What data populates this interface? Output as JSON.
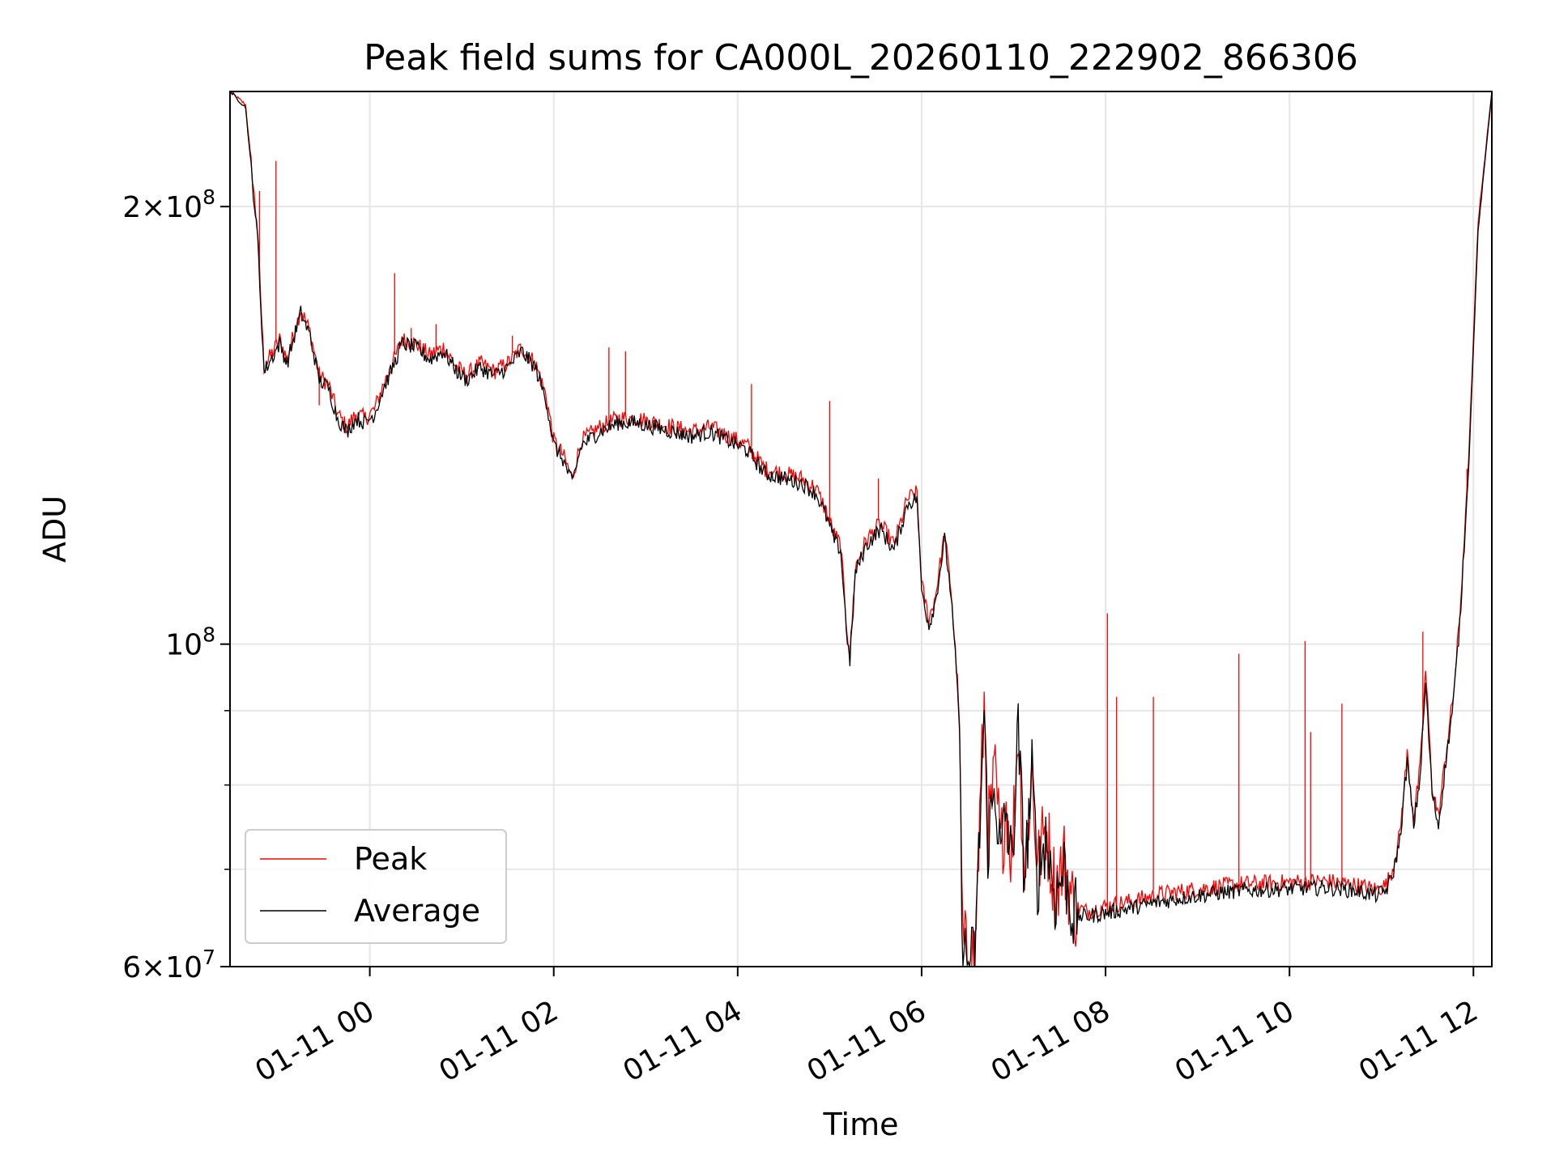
{
  "chart_data": {
    "type": "line",
    "title": "Peak field sums for CA000L_20260110_222902_866306",
    "xlabel": "Time",
    "ylabel": "ADU",
    "yscale": "log",
    "ylim": [
      60000000,
      240000000
    ],
    "xlim_hours": [
      -1.52,
      12.2
    ],
    "grid": true,
    "legend_position": "lower-left",
    "x_ticks": [
      {
        "hour": 0,
        "label": "01-11 00"
      },
      {
        "hour": 2,
        "label": "01-11 02"
      },
      {
        "hour": 4,
        "label": "01-11 04"
      },
      {
        "hour": 6,
        "label": "01-11 06"
      },
      {
        "hour": 8,
        "label": "01-11 08"
      },
      {
        "hour": 10,
        "label": "01-11 10"
      },
      {
        "hour": 12,
        "label": "01-11 12"
      }
    ],
    "y_major_ticks": [
      {
        "value": 60000000,
        "mantissa": "6",
        "exponent": "7"
      },
      {
        "value": 100000000,
        "mantissa": "",
        "exponent": "8"
      },
      {
        "value": 200000000,
        "mantissa": "2",
        "exponent": "8"
      }
    ],
    "y_minor_gridlines": [
      70000000,
      80000000,
      90000000
    ],
    "series": [
      {
        "name": "Peak",
        "color": "#ff0000",
        "spikes": [
          [
            -1.2,
            205000000
          ],
          [
            -1.02,
            215000000
          ],
          [
            -0.55,
            146000000
          ],
          [
            -0.38,
            146000000
          ],
          [
            0.27,
            180000000
          ],
          [
            0.45,
            165000000
          ],
          [
            0.72,
            166000000
          ],
          [
            1.55,
            163000000
          ],
          [
            1.85,
            154000000
          ],
          [
            2.6,
            160000000
          ],
          [
            2.78,
            159000000
          ],
          [
            4.15,
            151000000
          ],
          [
            5.0,
            147000000
          ],
          [
            5.53,
            130000000
          ],
          [
            8.02,
            105000000
          ],
          [
            8.12,
            92000000
          ],
          [
            8.52,
            92000000
          ],
          [
            9.45,
            98500000
          ],
          [
            10.17,
            100500000
          ],
          [
            10.23,
            87000000
          ],
          [
            10.57,
            91000000
          ],
          [
            11.45,
            102000000
          ],
          [
            11.93,
            132000000
          ]
        ],
        "points": [
          [
            -1.52,
            240000000
          ],
          [
            -1.35,
            235000000
          ],
          [
            -1.22,
            192000000
          ],
          [
            -1.15,
            155000000
          ],
          [
            -0.98,
            162000000
          ],
          [
            -0.9,
            157000000
          ],
          [
            -0.82,
            164000000
          ],
          [
            -0.75,
            170000000
          ],
          [
            -0.65,
            164000000
          ],
          [
            -0.55,
            153000000
          ],
          [
            -0.45,
            151000000
          ],
          [
            -0.35,
            144000000
          ],
          [
            -0.25,
            141000000
          ],
          [
            -0.15,
            144000000
          ],
          [
            -0.05,
            143000000
          ],
          [
            0.05,
            145000000
          ],
          [
            0.15,
            151000000
          ],
          [
            0.25,
            156000000
          ],
          [
            0.35,
            162000000
          ],
          [
            0.5,
            161000000
          ],
          [
            0.65,
            158000000
          ],
          [
            0.8,
            160000000
          ],
          [
            0.95,
            155000000
          ],
          [
            1.05,
            153000000
          ],
          [
            1.2,
            156000000
          ],
          [
            1.35,
            154000000
          ],
          [
            1.5,
            156000000
          ],
          [
            1.65,
            160000000
          ],
          [
            1.8,
            156000000
          ],
          [
            1.92,
            148000000
          ],
          [
            2.0,
            138000000
          ],
          [
            2.1,
            135000000
          ],
          [
            2.2,
            130000000
          ],
          [
            2.3,
            138000000
          ],
          [
            2.5,
            141000000
          ],
          [
            2.7,
            143000000
          ],
          [
            2.9,
            143000000
          ],
          [
            3.1,
            142000000
          ],
          [
            3.3,
            141000000
          ],
          [
            3.5,
            140000000
          ],
          [
            3.7,
            141000000
          ],
          [
            3.9,
            139000000
          ],
          [
            4.1,
            137000000
          ],
          [
            4.3,
            132000000
          ],
          [
            4.5,
            131000000
          ],
          [
            4.7,
            130000000
          ],
          [
            4.85,
            128000000
          ],
          [
            4.95,
            124000000
          ],
          [
            5.05,
            119000000
          ],
          [
            5.12,
            117000000
          ],
          [
            5.18,
            104000000
          ],
          [
            5.22,
            98000000
          ],
          [
            5.28,
            113000000
          ],
          [
            5.4,
            118000000
          ],
          [
            5.55,
            121000000
          ],
          [
            5.7,
            117000000
          ],
          [
            5.85,
            126000000
          ],
          [
            5.95,
            127000000
          ],
          [
            6.0,
            110000000
          ],
          [
            6.08,
            104000000
          ],
          [
            6.15,
            108000000
          ],
          [
            6.25,
            119000000
          ],
          [
            6.32,
            109000000
          ],
          [
            6.4,
            92000000
          ],
          [
            6.45,
            62000000
          ],
          [
            6.52,
            60500000
          ],
          [
            6.58,
            61500000
          ],
          [
            6.62,
            72000000
          ],
          [
            6.68,
            91000000
          ],
          [
            6.72,
            74000000
          ],
          [
            6.8,
            81000000
          ],
          [
            6.86,
            72000000
          ],
          [
            6.92,
            78000000
          ],
          [
            6.98,
            71000000
          ],
          [
            7.05,
            88000000
          ],
          [
            7.12,
            70000000
          ],
          [
            7.2,
            82000000
          ],
          [
            7.26,
            70000000
          ],
          [
            7.35,
            75000000
          ],
          [
            7.45,
            68000000
          ],
          [
            7.55,
            71000000
          ],
          [
            7.65,
            66000000
          ],
          [
            7.8,
            65500000
          ],
          [
            8.0,
            66000000
          ],
          [
            8.3,
            66600000
          ],
          [
            8.6,
            67300000
          ],
          [
            8.9,
            67700000
          ],
          [
            9.2,
            68100000
          ],
          [
            9.5,
            68400000
          ],
          [
            9.8,
            68500000
          ],
          [
            10.1,
            68600000
          ],
          [
            10.4,
            68700000
          ],
          [
            10.7,
            68300000
          ],
          [
            10.95,
            67800000
          ],
          [
            11.05,
            68300000
          ],
          [
            11.12,
            70000000
          ],
          [
            11.2,
            74000000
          ],
          [
            11.28,
            84000000
          ],
          [
            11.35,
            76000000
          ],
          [
            11.42,
            82000000
          ],
          [
            11.48,
            96000000
          ],
          [
            11.55,
            80000000
          ],
          [
            11.62,
            76000000
          ],
          [
            11.7,
            84000000
          ],
          [
            11.78,
            92000000
          ],
          [
            11.85,
            104000000
          ],
          [
            11.95,
            135000000
          ],
          [
            12.05,
            195000000
          ],
          [
            12.2,
            240000000
          ]
        ]
      },
      {
        "name": "Average",
        "color": "#000000",
        "points": [
          [
            -1.52,
            240000000
          ],
          [
            -1.35,
            234000000
          ],
          [
            -1.22,
            190000000
          ],
          [
            -1.15,
            154000000
          ],
          [
            -0.98,
            161000000
          ],
          [
            -0.9,
            156000000
          ],
          [
            -0.82,
            163000000
          ],
          [
            -0.75,
            169000000
          ],
          [
            -0.65,
            163000000
          ],
          [
            -0.55,
            152000000
          ],
          [
            -0.45,
            150000000
          ],
          [
            -0.35,
            143000000
          ],
          [
            -0.25,
            140000000
          ],
          [
            -0.15,
            143000000
          ],
          [
            -0.05,
            142000000
          ],
          [
            0.05,
            144000000
          ],
          [
            0.15,
            150000000
          ],
          [
            0.25,
            155000000
          ],
          [
            0.35,
            161000000
          ],
          [
            0.5,
            160000000
          ],
          [
            0.65,
            157000000
          ],
          [
            0.8,
            159000000
          ],
          [
            0.95,
            154000000
          ],
          [
            1.05,
            152000000
          ],
          [
            1.2,
            155000000
          ],
          [
            1.35,
            153000000
          ],
          [
            1.5,
            155000000
          ],
          [
            1.65,
            159000000
          ],
          [
            1.8,
            155000000
          ],
          [
            1.92,
            147000000
          ],
          [
            2.0,
            137000000
          ],
          [
            2.1,
            134000000
          ],
          [
            2.2,
            129000000
          ],
          [
            2.3,
            137000000
          ],
          [
            2.5,
            140000000
          ],
          [
            2.7,
            142000000
          ],
          [
            2.9,
            142000000
          ],
          [
            3.1,
            141000000
          ],
          [
            3.3,
            140000000
          ],
          [
            3.5,
            139000000
          ],
          [
            3.7,
            140000000
          ],
          [
            3.9,
            138000000
          ],
          [
            4.1,
            136000000
          ],
          [
            4.3,
            131000000
          ],
          [
            4.5,
            130000000
          ],
          [
            4.7,
            129000000
          ],
          [
            4.85,
            127000000
          ],
          [
            4.95,
            123000000
          ],
          [
            5.05,
            118000000
          ],
          [
            5.12,
            116000000
          ],
          [
            5.18,
            103000000
          ],
          [
            5.22,
            97000000
          ],
          [
            5.28,
            112000000
          ],
          [
            5.4,
            117000000
          ],
          [
            5.55,
            120000000
          ],
          [
            5.7,
            116000000
          ],
          [
            5.85,
            125000000
          ],
          [
            5.95,
            126000000
          ],
          [
            6.0,
            109000000
          ],
          [
            6.08,
            103000000
          ],
          [
            6.15,
            107000000
          ],
          [
            6.25,
            118000000
          ],
          [
            6.32,
            108000000
          ],
          [
            6.4,
            91000000
          ],
          [
            6.45,
            61500000
          ],
          [
            6.52,
            60000000
          ],
          [
            6.58,
            61000000
          ],
          [
            6.62,
            71000000
          ],
          [
            6.68,
            90000000
          ],
          [
            6.72,
            73000000
          ],
          [
            6.8,
            80000000
          ],
          [
            6.86,
            71000000
          ],
          [
            6.92,
            77000000
          ],
          [
            6.98,
            70000000
          ],
          [
            7.05,
            87000000
          ],
          [
            7.12,
            69000000
          ],
          [
            7.2,
            81000000
          ],
          [
            7.26,
            69000000
          ],
          [
            7.35,
            74000000
          ],
          [
            7.45,
            67000000
          ],
          [
            7.55,
            70000000
          ],
          [
            7.65,
            65000000
          ],
          [
            7.8,
            65000000
          ],
          [
            8.0,
            65300000
          ],
          [
            8.3,
            65900000
          ],
          [
            8.6,
            66500000
          ],
          [
            8.9,
            67000000
          ],
          [
            9.2,
            67400000
          ],
          [
            9.5,
            67700000
          ],
          [
            9.8,
            67800000
          ],
          [
            10.1,
            67900000
          ],
          [
            10.4,
            68000000
          ],
          [
            10.7,
            67700000
          ],
          [
            10.95,
            67200000
          ],
          [
            11.05,
            67700000
          ],
          [
            11.12,
            69300000
          ],
          [
            11.2,
            73300000
          ],
          [
            11.28,
            83000000
          ],
          [
            11.35,
            75000000
          ],
          [
            11.42,
            81000000
          ],
          [
            11.48,
            94000000
          ],
          [
            11.55,
            79000000
          ],
          [
            11.62,
            75000000
          ],
          [
            11.7,
            83000000
          ],
          [
            11.78,
            91000000
          ],
          [
            11.85,
            103000000
          ],
          [
            11.95,
            133000000
          ],
          [
            12.05,
            192000000
          ],
          [
            12.2,
            240000000
          ]
        ]
      }
    ]
  }
}
